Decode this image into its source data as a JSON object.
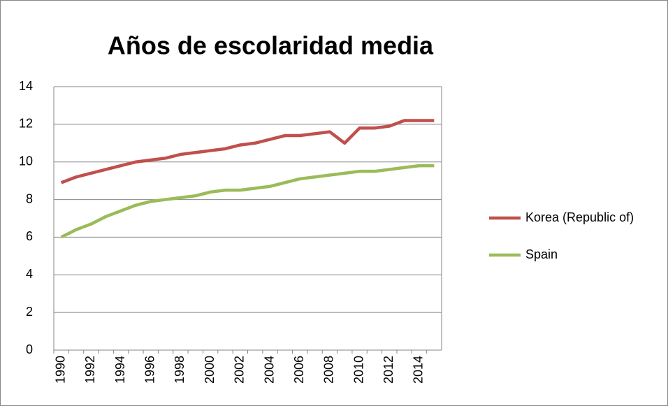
{
  "chart_data": {
    "type": "line",
    "title": "Años de escolaridad media",
    "categories": [
      "1990",
      null,
      "1992",
      null,
      "1994",
      null,
      "1996",
      null,
      "1998",
      null,
      "2000",
      null,
      "2002",
      null,
      "2004",
      null,
      "2006",
      null,
      "2008",
      null,
      "2010",
      null,
      "2012",
      null,
      "2014",
      null
    ],
    "series": [
      {
        "name": "Korea (Republic of)",
        "color": "#c0504d",
        "values": [
          8.9,
          9.2,
          9.4,
          9.6,
          9.8,
          10.0,
          10.1,
          10.2,
          10.4,
          10.5,
          10.6,
          10.7,
          10.9,
          11.0,
          11.2,
          11.4,
          11.4,
          11.5,
          11.6,
          11.0,
          11.8,
          11.8,
          11.9,
          12.2,
          12.2,
          12.2
        ]
      },
      {
        "name": "Spain",
        "color": "#9bbb59",
        "values": [
          6.0,
          6.4,
          6.7,
          7.1,
          7.4,
          7.7,
          7.9,
          8.0,
          8.1,
          8.2,
          8.4,
          8.5,
          8.5,
          8.6,
          8.7,
          8.9,
          9.1,
          9.2,
          9.3,
          9.4,
          9.5,
          9.5,
          9.6,
          9.7,
          9.8,
          9.8
        ]
      }
    ],
    "ylim": [
      0,
      14
    ],
    "yticks": [
      0,
      2,
      4,
      6,
      8,
      10,
      12,
      14
    ],
    "grid": true,
    "legend": "right"
  }
}
